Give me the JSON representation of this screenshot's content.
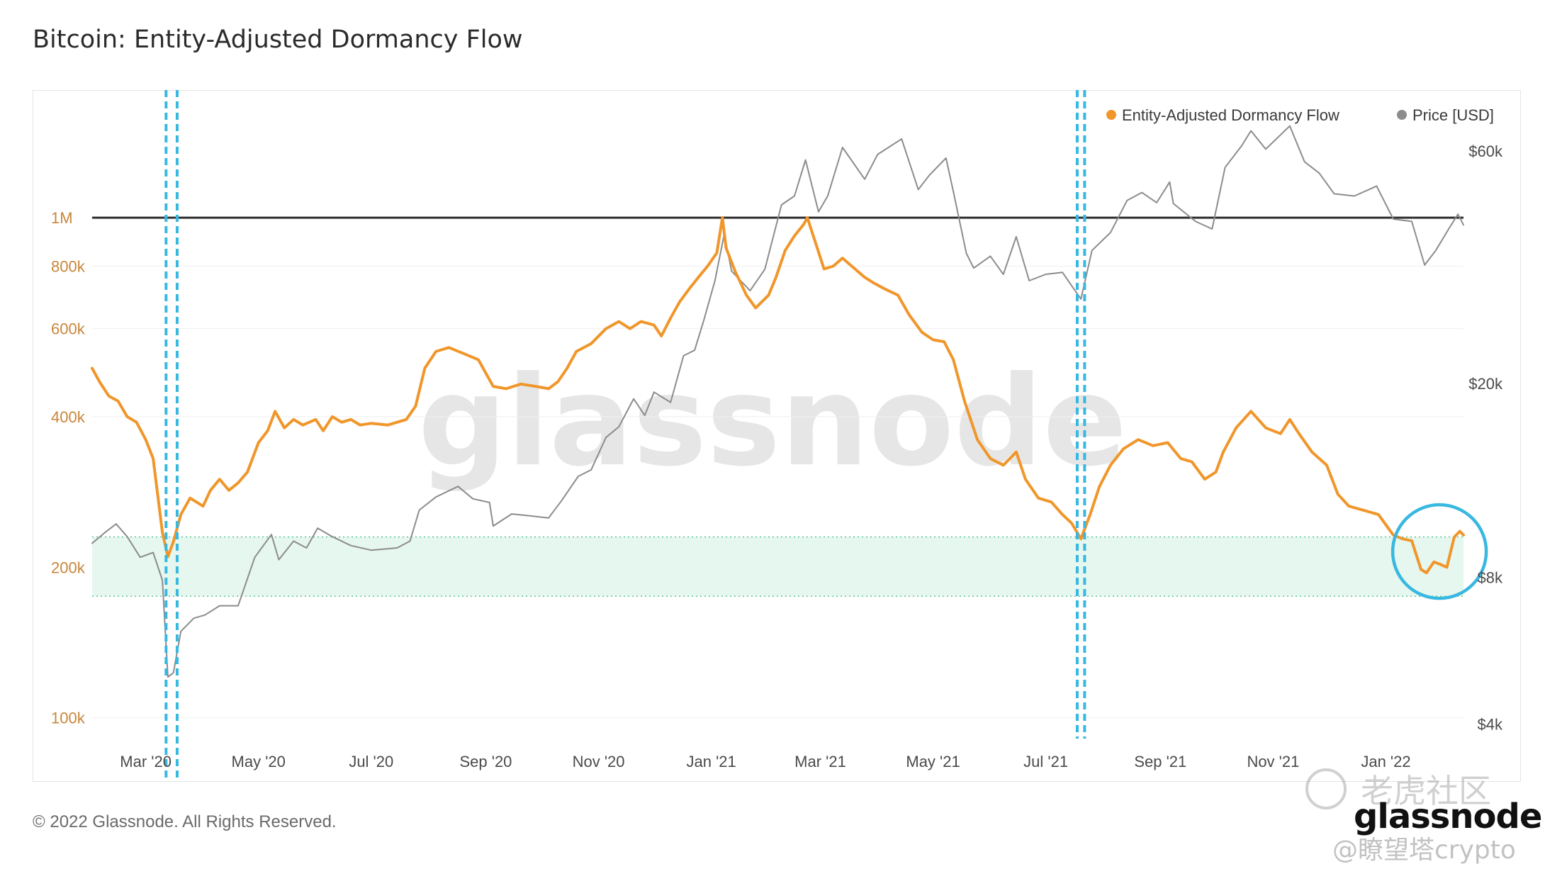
{
  "header": {
    "title": "Bitcoin: Entity-Adjusted Dormancy Flow"
  },
  "footer": {
    "copyright": "© 2022 Glassnode. All Rights Reserved.",
    "brand": "glassnode"
  },
  "watermarks": {
    "chart_watermark": "glassnode",
    "cn_text": "老虎社区",
    "handle": "@瞭望塔crypto"
  },
  "colors": {
    "dormancy": "#f0962a",
    "price": "#8c8c8c",
    "threshold_line": "#2e2e2e",
    "band_fill": "#e6f7ef",
    "band_edge": "#5fc49a",
    "highlight": "#38b8e0",
    "left_axis_text": "#c8863a",
    "right_axis_text": "#4a4a4a",
    "x_axis_text": "#4a4a4a"
  },
  "chart_data": {
    "type": "line",
    "title": "Bitcoin: Entity-Adjusted Dormancy Flow",
    "legend": {
      "placement": "top-right",
      "entries": [
        "Entity-Adjusted Dormancy Flow",
        "Price [USD]"
      ]
    },
    "x_ticks": [
      "Mar '20",
      "May '20",
      "Jul '20",
      "Sep '20",
      "Nov '20",
      "Jan '21",
      "Mar '21",
      "May '21",
      "Jul '21",
      "Sep '21",
      "Nov '21",
      "Jan '22"
    ],
    "left_axis": {
      "scale": "log",
      "range": [
        90000,
        1800000
      ],
      "tick_values": [
        100000,
        200000,
        400000,
        600000,
        800000,
        1000000
      ],
      "tick_labels": [
        "100k",
        "200k",
        "400k",
        "600k",
        "800k",
        "1M"
      ]
    },
    "right_axis": {
      "scale": "log",
      "range": [
        3700,
        80000
      ],
      "tick_values": [
        4000,
        8000,
        20000,
        60000
      ],
      "tick_labels": [
        "$4k",
        "$8k",
        "$20k",
        "$60k"
      ]
    },
    "reference_line": {
      "axis": "left",
      "value": 1000000
    },
    "shaded_band": {
      "axis": "left",
      "range": [
        175000,
        230000
      ]
    },
    "highlight_vertical_bands": [
      [
        "2020-03-12",
        "2020-03-18"
      ],
      [
        "2021-07-18",
        "2021-07-22"
      ]
    ],
    "highlight_circle": {
      "center_date": "2022-01-30",
      "center_value": 215000
    },
    "series": [
      {
        "name": "Entity-Adjusted Dormancy Flow",
        "axis": "left",
        "points": [
          [
            "2020-02-01",
            500000
          ],
          [
            "2020-02-05",
            470000
          ],
          [
            "2020-02-10",
            440000
          ],
          [
            "2020-02-15",
            430000
          ],
          [
            "2020-02-20",
            400000
          ],
          [
            "2020-02-25",
            390000
          ],
          [
            "2020-03-01",
            360000
          ],
          [
            "2020-03-05",
            330000
          ],
          [
            "2020-03-10",
            235000
          ],
          [
            "2020-03-13",
            210000
          ],
          [
            "2020-03-16",
            225000
          ],
          [
            "2020-03-20",
            255000
          ],
          [
            "2020-03-25",
            275000
          ],
          [
            "2020-04-01",
            265000
          ],
          [
            "2020-04-05",
            285000
          ],
          [
            "2020-04-10",
            300000
          ],
          [
            "2020-04-15",
            285000
          ],
          [
            "2020-04-20",
            295000
          ],
          [
            "2020-04-25",
            310000
          ],
          [
            "2020-05-01",
            355000
          ],
          [
            "2020-05-06",
            375000
          ],
          [
            "2020-05-10",
            410000
          ],
          [
            "2020-05-15",
            380000
          ],
          [
            "2020-05-20",
            395000
          ],
          [
            "2020-05-25",
            385000
          ],
          [
            "2020-06-01",
            395000
          ],
          [
            "2020-06-05",
            375000
          ],
          [
            "2020-06-10",
            400000
          ],
          [
            "2020-06-15",
            390000
          ],
          [
            "2020-06-20",
            395000
          ],
          [
            "2020-06-25",
            385000
          ],
          [
            "2020-07-01",
            388000
          ],
          [
            "2020-07-10",
            385000
          ],
          [
            "2020-07-20",
            395000
          ],
          [
            "2020-07-25",
            420000
          ],
          [
            "2020-07-30",
            500000
          ],
          [
            "2020-08-05",
            540000
          ],
          [
            "2020-08-12",
            550000
          ],
          [
            "2020-08-20",
            535000
          ],
          [
            "2020-08-28",
            520000
          ],
          [
            "2020-09-05",
            460000
          ],
          [
            "2020-09-12",
            455000
          ],
          [
            "2020-09-20",
            465000
          ],
          [
            "2020-09-28",
            460000
          ],
          [
            "2020-10-05",
            455000
          ],
          [
            "2020-10-10",
            470000
          ],
          [
            "2020-10-15",
            500000
          ],
          [
            "2020-10-20",
            540000
          ],
          [
            "2020-10-28",
            560000
          ],
          [
            "2020-11-05",
            600000
          ],
          [
            "2020-11-12",
            620000
          ],
          [
            "2020-11-18",
            600000
          ],
          [
            "2020-11-24",
            620000
          ],
          [
            "2020-12-01",
            610000
          ],
          [
            "2020-12-05",
            580000
          ],
          [
            "2020-12-10",
            630000
          ],
          [
            "2020-12-15",
            680000
          ],
          [
            "2020-12-20",
            720000
          ],
          [
            "2020-12-25",
            760000
          ],
          [
            "2020-12-30",
            800000
          ],
          [
            "2021-01-04",
            850000
          ],
          [
            "2021-01-07",
            1000000
          ],
          [
            "2021-01-09",
            870000
          ],
          [
            "2021-01-14",
            780000
          ],
          [
            "2021-01-20",
            700000
          ],
          [
            "2021-01-25",
            660000
          ],
          [
            "2021-02-01",
            700000
          ],
          [
            "2021-02-05",
            760000
          ],
          [
            "2021-02-10",
            860000
          ],
          [
            "2021-02-15",
            920000
          ],
          [
            "2021-02-20",
            970000
          ],
          [
            "2021-02-22",
            1000000
          ],
          [
            "2021-02-26",
            900000
          ],
          [
            "2021-03-03",
            790000
          ],
          [
            "2021-03-08",
            800000
          ],
          [
            "2021-03-13",
            830000
          ],
          [
            "2021-03-18",
            800000
          ],
          [
            "2021-03-25",
            760000
          ],
          [
            "2021-03-30",
            740000
          ],
          [
            "2021-04-05",
            720000
          ],
          [
            "2021-04-12",
            700000
          ],
          [
            "2021-04-18",
            640000
          ],
          [
            "2021-04-25",
            590000
          ],
          [
            "2021-05-01",
            570000
          ],
          [
            "2021-05-07",
            565000
          ],
          [
            "2021-05-12",
            520000
          ],
          [
            "2021-05-18",
            430000
          ],
          [
            "2021-05-25",
            360000
          ],
          [
            "2021-06-01",
            330000
          ],
          [
            "2021-06-08",
            320000
          ],
          [
            "2021-06-15",
            340000
          ],
          [
            "2021-06-20",
            300000
          ],
          [
            "2021-06-27",
            275000
          ],
          [
            "2021-07-04",
            270000
          ],
          [
            "2021-07-10",
            255000
          ],
          [
            "2021-07-15",
            245000
          ],
          [
            "2021-07-20",
            228000
          ],
          [
            "2021-07-25",
            255000
          ],
          [
            "2021-07-30",
            290000
          ],
          [
            "2021-08-05",
            320000
          ],
          [
            "2021-08-12",
            345000
          ],
          [
            "2021-08-20",
            360000
          ],
          [
            "2021-08-28",
            350000
          ],
          [
            "2021-09-05",
            355000
          ],
          [
            "2021-09-12",
            330000
          ],
          [
            "2021-09-18",
            325000
          ],
          [
            "2021-09-25",
            300000
          ],
          [
            "2021-10-01",
            310000
          ],
          [
            "2021-10-05",
            340000
          ],
          [
            "2021-10-12",
            380000
          ],
          [
            "2021-10-20",
            410000
          ],
          [
            "2021-10-28",
            380000
          ],
          [
            "2021-11-05",
            370000
          ],
          [
            "2021-11-10",
            395000
          ],
          [
            "2021-11-15",
            370000
          ],
          [
            "2021-11-22",
            340000
          ],
          [
            "2021-11-30",
            320000
          ],
          [
            "2021-12-06",
            280000
          ],
          [
            "2021-12-12",
            265000
          ],
          [
            "2021-12-20",
            260000
          ],
          [
            "2021-12-28",
            255000
          ],
          [
            "2022-01-05",
            232000
          ],
          [
            "2022-01-10",
            228000
          ],
          [
            "2022-01-15",
            226000
          ],
          [
            "2022-01-20",
            198000
          ],
          [
            "2022-01-23",
            195000
          ],
          [
            "2022-01-27",
            205000
          ],
          [
            "2022-01-30",
            203000
          ],
          [
            "2022-02-03",
            200000
          ],
          [
            "2022-02-07",
            230000
          ],
          [
            "2022-02-10",
            236000
          ],
          [
            "2022-02-12",
            232000
          ]
        ]
      },
      {
        "name": "Price [USD]",
        "axis": "right",
        "points": [
          [
            "2020-02-01",
            9400
          ],
          [
            "2020-02-08",
            9900
          ],
          [
            "2020-02-14",
            10300
          ],
          [
            "2020-02-20",
            9700
          ],
          [
            "2020-02-27",
            8800
          ],
          [
            "2020-03-05",
            9000
          ],
          [
            "2020-03-10",
            7900
          ],
          [
            "2020-03-13",
            5000
          ],
          [
            "2020-03-16",
            5100
          ],
          [
            "2020-03-20",
            6200
          ],
          [
            "2020-03-27",
            6600
          ],
          [
            "2020-04-02",
            6700
          ],
          [
            "2020-04-10",
            7000
          ],
          [
            "2020-04-20",
            7000
          ],
          [
            "2020-04-29",
            8800
          ],
          [
            "2020-05-08",
            9800
          ],
          [
            "2020-05-12",
            8700
          ],
          [
            "2020-05-20",
            9500
          ],
          [
            "2020-05-27",
            9200
          ],
          [
            "2020-06-02",
            10100
          ],
          [
            "2020-06-10",
            9700
          ],
          [
            "2020-06-20",
            9300
          ],
          [
            "2020-07-01",
            9100
          ],
          [
            "2020-07-15",
            9200
          ],
          [
            "2020-07-22",
            9500
          ],
          [
            "2020-07-27",
            11000
          ],
          [
            "2020-08-05",
            11700
          ],
          [
            "2020-08-17",
            12300
          ],
          [
            "2020-08-25",
            11600
          ],
          [
            "2020-09-03",
            11400
          ],
          [
            "2020-09-05",
            10200
          ],
          [
            "2020-09-15",
            10800
          ],
          [
            "2020-09-25",
            10700
          ],
          [
            "2020-10-05",
            10600
          ],
          [
            "2020-10-12",
            11500
          ],
          [
            "2020-10-21",
            12900
          ],
          [
            "2020-10-28",
            13300
          ],
          [
            "2020-11-05",
            15500
          ],
          [
            "2020-11-12",
            16300
          ],
          [
            "2020-11-20",
            18600
          ],
          [
            "2020-11-26",
            17200
          ],
          [
            "2020-12-01",
            19200
          ],
          [
            "2020-12-10",
            18300
          ],
          [
            "2020-12-17",
            22800
          ],
          [
            "2020-12-23",
            23400
          ],
          [
            "2020-12-28",
            27000
          ],
          [
            "2021-01-03",
            32500
          ],
          [
            "2021-01-08",
            40500
          ],
          [
            "2021-01-12",
            34000
          ],
          [
            "2021-01-22",
            31000
          ],
          [
            "2021-01-30",
            34300
          ],
          [
            "2021-02-08",
            46500
          ],
          [
            "2021-02-15",
            48500
          ],
          [
            "2021-02-21",
            57500
          ],
          [
            "2021-02-28",
            45000
          ],
          [
            "2021-03-05",
            48500
          ],
          [
            "2021-03-13",
            61000
          ],
          [
            "2021-03-25",
            52500
          ],
          [
            "2021-04-01",
            59000
          ],
          [
            "2021-04-14",
            63500
          ],
          [
            "2021-04-23",
            50000
          ],
          [
            "2021-04-29",
            53500
          ],
          [
            "2021-05-08",
            58000
          ],
          [
            "2021-05-12",
            49500
          ],
          [
            "2021-05-19",
            37000
          ],
          [
            "2021-05-23",
            34500
          ],
          [
            "2021-06-01",
            36500
          ],
          [
            "2021-06-08",
            33500
          ],
          [
            "2021-06-15",
            40000
          ],
          [
            "2021-06-22",
            32500
          ],
          [
            "2021-07-01",
            33500
          ],
          [
            "2021-07-10",
            33800
          ],
          [
            "2021-07-20",
            29800
          ],
          [
            "2021-07-26",
            37500
          ],
          [
            "2021-08-05",
            40800
          ],
          [
            "2021-08-14",
            47500
          ],
          [
            "2021-08-22",
            49300
          ],
          [
            "2021-08-30",
            47000
          ],
          [
            "2021-09-06",
            51800
          ],
          [
            "2021-09-08",
            46800
          ],
          [
            "2021-09-20",
            43000
          ],
          [
            "2021-09-29",
            41500
          ],
          [
            "2021-10-06",
            55500
          ],
          [
            "2021-10-15",
            61500
          ],
          [
            "2021-10-20",
            66000
          ],
          [
            "2021-10-28",
            60500
          ],
          [
            "2021-11-10",
            67500
          ],
          [
            "2021-11-18",
            57000
          ],
          [
            "2021-11-26",
            54000
          ],
          [
            "2021-12-04",
            49000
          ],
          [
            "2021-12-15",
            48500
          ],
          [
            "2021-12-27",
            50800
          ],
          [
            "2022-01-05",
            43500
          ],
          [
            "2022-01-15",
            43000
          ],
          [
            "2022-01-22",
            35000
          ],
          [
            "2022-01-28",
            37500
          ],
          [
            "2022-02-04",
            41500
          ],
          [
            "2022-02-09",
            44500
          ],
          [
            "2022-02-12",
            42300
          ]
        ]
      }
    ]
  }
}
